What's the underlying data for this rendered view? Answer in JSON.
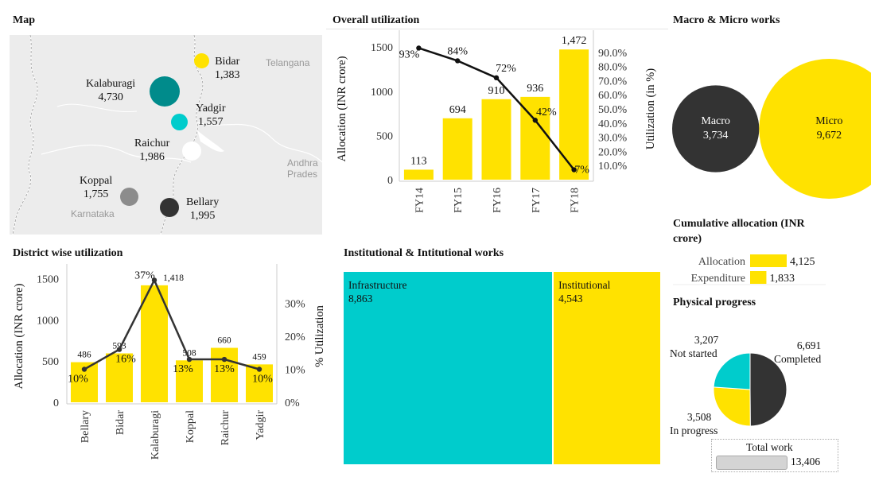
{
  "colors": {
    "yellow": "#ffe200",
    "cyan": "#00cccc",
    "teal": "#008b8b",
    "dark": "#333333",
    "grey": "#8c8c8c",
    "white": "#ffffff",
    "mapbg": "#ececec"
  },
  "titles": {
    "map": "Map",
    "overall": "Overall utilization",
    "macro": "Macro & Micro works",
    "district": "District wise utilization",
    "institutional": "Institutional & Intitutional works",
    "cumulative": "Cumulative allocation (INR crore)",
    "physical": "Physical progress"
  },
  "map": {
    "places": [
      "Telangana",
      "Andhra Prades",
      "Karnataka"
    ],
    "districts": [
      {
        "name": "Bidar",
        "value": "1,383",
        "color": "#ffe200"
      },
      {
        "name": "Kalaburagi",
        "value": "4,730",
        "color": "#008b8b"
      },
      {
        "name": "Yadgir",
        "value": "1,557",
        "color": "#00cccc"
      },
      {
        "name": "Raichur",
        "value": "1,986",
        "color": "#ffffff"
      },
      {
        "name": "Koppal",
        "value": "1,755",
        "color": "#8c8c8c"
      },
      {
        "name": "Bellary",
        "value": "1,995",
        "color": "#333333"
      }
    ]
  },
  "chart_data": [
    {
      "type": "bar",
      "id": "overall",
      "categories": [
        "FY14",
        "FY15",
        "FY16",
        "FY17",
        "FY18"
      ],
      "series": [
        {
          "name": "Allocation (INR crore)",
          "type": "bar",
          "values": [
            113,
            694,
            910,
            936,
            1472
          ],
          "labels": [
            "113",
            "694",
            "910",
            "936",
            "1,472"
          ]
        },
        {
          "name": "Utilization (in %)",
          "type": "line",
          "values": [
            93,
            84,
            72,
            42,
            7
          ],
          "labels": [
            "93%",
            "84%",
            "72%",
            "42%",
            "7%"
          ]
        }
      ],
      "ylabel": "Allocation (INR crore)",
      "y2label": "Utilization (in %)",
      "ylim": [
        0,
        1600
      ],
      "yticks": [
        "0",
        "500",
        "1000",
        "1500"
      ],
      "y2lim": [
        0,
        100
      ],
      "y2ticks": [
        "10.0%",
        "20.0%",
        "30.0%",
        "40.0%",
        "50.0%",
        "60.0%",
        "70.0%",
        "80.0%",
        "90.0%"
      ]
    },
    {
      "type": "bar",
      "id": "district",
      "categories": [
        "Bellary",
        "Bidar",
        "Kalaburagi",
        "Koppal",
        "Raichur",
        "Yadgir"
      ],
      "series": [
        {
          "name": "Allocation (INR crore)",
          "type": "bar",
          "values": [
            486,
            593,
            1418,
            508,
            660,
            459
          ],
          "labels": [
            "486",
            "593",
            "1,418",
            "508",
            "660",
            "459"
          ]
        },
        {
          "name": "% Utilization",
          "type": "line",
          "values": [
            10,
            16,
            37,
            13,
            13,
            10
          ],
          "labels": [
            "10%",
            "16%",
            "37%",
            "13%",
            "13%",
            "10%"
          ]
        }
      ],
      "ylabel": "Allocation (INR crore)",
      "y2label": "% Utilization",
      "ylim": [
        0,
        1600
      ],
      "yticks": [
        "0",
        "500",
        "1000",
        "1500"
      ],
      "y2lim": [
        0,
        40
      ],
      "y2ticks": [
        "0%",
        "10%",
        "20%",
        "30%"
      ]
    },
    {
      "type": "bubble",
      "id": "macro",
      "items": [
        {
          "name": "Macro",
          "value": 3734,
          "label": "3,734"
        },
        {
          "name": "Micro",
          "value": 9672,
          "label": "9,672"
        }
      ]
    },
    {
      "type": "treemap",
      "id": "institutional",
      "items": [
        {
          "name": "Infrastructure",
          "value": 8863,
          "label": "8,863"
        },
        {
          "name": "Institutional",
          "value": 4543,
          "label": "4,543"
        }
      ]
    },
    {
      "type": "bar",
      "id": "cumulative",
      "categories": [
        "Allocation",
        "Expenditure"
      ],
      "values": [
        4125,
        1833
      ],
      "labels": [
        "4,125",
        "1,833"
      ]
    },
    {
      "type": "pie",
      "id": "physical",
      "slices": [
        {
          "name": "Completed",
          "value": 6691,
          "label": "6,691"
        },
        {
          "name": "In progress",
          "value": 3508,
          "label": "3,508"
        },
        {
          "name": "Not started",
          "value": 3207,
          "label": "3,207"
        }
      ],
      "total": {
        "name": "Total work",
        "value": 13406,
        "label": "13,406"
      }
    }
  ]
}
